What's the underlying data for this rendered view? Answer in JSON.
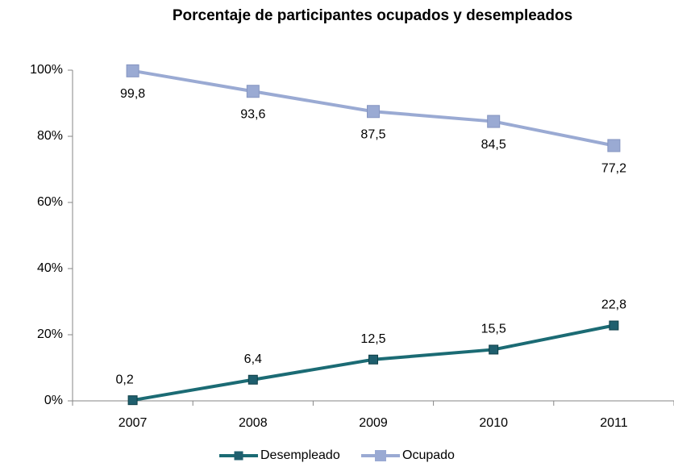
{
  "chart_data": {
    "type": "line",
    "title": "Porcentaje de participantes ocupados y desempleados",
    "categories": [
      "2007",
      "2008",
      "2009",
      "2010",
      "2011"
    ],
    "series": [
      {
        "name": "Desempleado",
        "color": "#1b6b74",
        "marker_color": "#1f5f6e",
        "values": [
          0.2,
          6.4,
          12.5,
          15.5,
          22.8
        ],
        "value_labels": [
          "0,2",
          "6,4",
          "12,5",
          "15,5",
          "22,8"
        ]
      },
      {
        "name": "Ocupado",
        "color": "#9aaad3",
        "marker_color": "#9aaad3",
        "values": [
          99.8,
          93.6,
          87.5,
          84.5,
          77.2
        ],
        "value_labels": [
          "99,8",
          "93,6",
          "87,5",
          "84,5",
          "77,2"
        ]
      }
    ],
    "ylim": [
      0,
      100
    ],
    "yticks": [
      {
        "value": 0,
        "label": "0%"
      },
      {
        "value": 20,
        "label": "20%"
      },
      {
        "value": 40,
        "label": "40%"
      },
      {
        "value": 60,
        "label": "60%"
      },
      {
        "value": 80,
        "label": "80%"
      },
      {
        "value": 100,
        "label": "100%"
      }
    ],
    "legend": "bottom"
  }
}
